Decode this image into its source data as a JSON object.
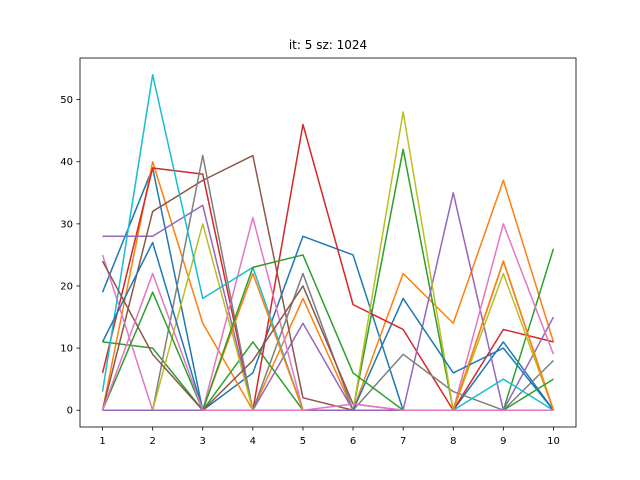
{
  "chart_data": {
    "type": "line",
    "title": "it: 5 sz: 1024",
    "xlabel": "",
    "ylabel": "",
    "x": [
      1,
      2,
      3,
      4,
      5,
      6,
      7,
      8,
      9,
      10
    ],
    "xlim": [
      0.55,
      10.45
    ],
    "ylim": [
      -2.7,
      56.7
    ],
    "xticks": [
      1,
      2,
      3,
      4,
      5,
      6,
      7,
      8,
      9,
      10
    ],
    "yticks": [
      0,
      10,
      20,
      30,
      40,
      50
    ],
    "grid": false,
    "series": [
      {
        "color": "#1f77b4",
        "values": [
          19,
          39,
          0,
          6,
          28,
          25,
          0,
          0,
          11,
          0
        ]
      },
      {
        "color": "#ff7f0e",
        "values": [
          0,
          40,
          14,
          0,
          18,
          0,
          22,
          14,
          37,
          11
        ]
      },
      {
        "color": "#2ca02c",
        "values": [
          11,
          10,
          0,
          11,
          0,
          0,
          42,
          0,
          0,
          26
        ]
      },
      {
        "color": "#d62728",
        "values": [
          6,
          39,
          38,
          0,
          46,
          17,
          13,
          0,
          13,
          11
        ]
      },
      {
        "color": "#9467bd",
        "values": [
          28,
          28,
          33,
          0,
          14,
          0,
          0,
          35,
          0,
          15
        ]
      },
      {
        "color": "#8c564b",
        "values": [
          0,
          32,
          37,
          41,
          2,
          0,
          0,
          0,
          24,
          0
        ]
      },
      {
        "color": "#e377c2",
        "values": [
          25,
          0,
          0,
          31,
          0,
          0,
          0,
          0,
          30,
          9
        ]
      },
      {
        "color": "#7f7f7f",
        "values": [
          0,
          0,
          41,
          0,
          22,
          0,
          9,
          3,
          0,
          8
        ]
      },
      {
        "color": "#bcbd22",
        "values": [
          0,
          0,
          30,
          0,
          0,
          0,
          48,
          0,
          22,
          0
        ]
      },
      {
        "color": "#17becf",
        "values": [
          3,
          54,
          18,
          23,
          0,
          0,
          0,
          0,
          5,
          0
        ]
      },
      {
        "color": "#1f77b4",
        "values": [
          11,
          27,
          0,
          0,
          0,
          0,
          18,
          6,
          10,
          0
        ]
      },
      {
        "color": "#ff7f0e",
        "values": [
          0,
          0,
          0,
          22,
          0,
          0,
          0,
          0,
          24,
          0
        ]
      },
      {
        "color": "#2ca02c",
        "values": [
          0,
          19,
          0,
          23,
          25,
          6,
          0,
          0,
          0,
          5
        ]
      },
      {
        "color": "#d62728",
        "values": [
          0,
          0,
          0,
          0,
          0,
          0,
          0,
          0,
          0,
          0
        ]
      },
      {
        "color": "#9467bd",
        "values": [
          0,
          0,
          0,
          0,
          0,
          0,
          0,
          0,
          0,
          0
        ]
      },
      {
        "color": "#8c564b",
        "values": [
          24,
          9,
          0,
          8,
          20,
          1,
          0,
          0,
          0,
          0
        ]
      },
      {
        "color": "#e377c2",
        "values": [
          0,
          22,
          0,
          0,
          0,
          1,
          0,
          0,
          0,
          0
        ]
      }
    ]
  }
}
